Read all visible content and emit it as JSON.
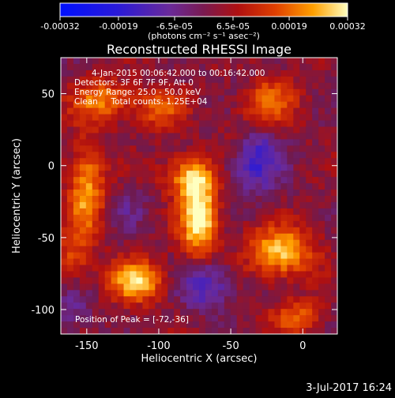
{
  "chart_data": {
    "type": "heatmap",
    "title": "Reconstructed RHESSI Image",
    "xlabel": "Heliocentric X (arcsec)",
    "ylabel": "Heliocentric Y (arcsec)",
    "xlim": [
      -168,
      24
    ],
    "ylim": [
      -117,
      75
    ],
    "x_ticks": [
      "-150",
      "-100",
      "-50",
      "0"
    ],
    "x_tick_values": [
      -150,
      -100,
      -50,
      0
    ],
    "y_ticks": [
      "50",
      "0",
      "-50",
      "-100"
    ],
    "y_tick_values": [
      50,
      0,
      -50,
      -100
    ],
    "colorbar": {
      "range": [
        -0.00032,
        0.00032
      ],
      "ticks": [
        "-0.00032",
        "-0.00019",
        "-6.5e-05",
        "6.5e-05",
        "0.00019",
        "0.00032"
      ],
      "tick_values": [
        -0.00032,
        -0.00019,
        -6.5e-05,
        6.5e-05,
        0.00019,
        0.00032
      ],
      "units_label": "(photons cm⁻² s⁻¹ asec⁻²)"
    },
    "annotations": [
      "4-Jan-2015 00:06:42.000 to 00:16:42.000",
      "Detectors: 3F 6F 7F 9F, Att 0",
      "Energy Range: 25.0 - 50.0 keV",
      "Clean     Total counts: 1.25E+04"
    ],
    "peak_text": "Position of Peak = [-72,-36]",
    "sources": [
      {
        "x": -72,
        "y": -36,
        "sx": 9,
        "sy": 20,
        "amp": 1.0
      },
      {
        "x": -80,
        "y": -8,
        "sx": 12,
        "sy": 10,
        "amp": 0.6
      },
      {
        "x": -115,
        "y": -80,
        "sx": 13,
        "sy": 10,
        "amp": 0.85
      },
      {
        "x": -15,
        "y": -60,
        "sx": 16,
        "sy": 12,
        "amp": 0.8
      },
      {
        "x": -150,
        "y": -18,
        "sx": 9,
        "sy": 22,
        "amp": 0.7
      },
      {
        "x": -140,
        "y": 45,
        "sx": 14,
        "sy": 10,
        "amp": 0.6
      },
      {
        "x": -25,
        "y": 45,
        "sx": 14,
        "sy": 12,
        "amp": 0.55
      },
      {
        "x": -100,
        "y": 40,
        "sx": 12,
        "sy": 10,
        "amp": 0.45
      },
      {
        "x": -45,
        "y": 15,
        "sx": 10,
        "sy": 12,
        "amp": 0.3
      },
      {
        "x": -5,
        "y": -105,
        "sx": 12,
        "sy": 8,
        "amp": 0.5
      },
      {
        "x": -160,
        "y": -65,
        "sx": 8,
        "sy": 12,
        "amp": 0.35
      }
    ],
    "negative_regions": [
      {
        "x": -35,
        "y": 5,
        "sx": 13,
        "sy": 16,
        "amp": 0.65
      },
      {
        "x": -68,
        "y": -82,
        "sx": 13,
        "sy": 12,
        "amp": 0.55
      },
      {
        "x": -120,
        "y": -30,
        "sx": 10,
        "sy": 10,
        "amp": 0.2
      },
      {
        "x": -160,
        "y": -100,
        "sx": 10,
        "sy": 10,
        "amp": 0.3
      },
      {
        "x": -40,
        "y": 55,
        "sx": 8,
        "sy": 8,
        "amp": 0.2
      }
    ]
  },
  "footer": {
    "date": "3-Jul-2017 16:24"
  }
}
